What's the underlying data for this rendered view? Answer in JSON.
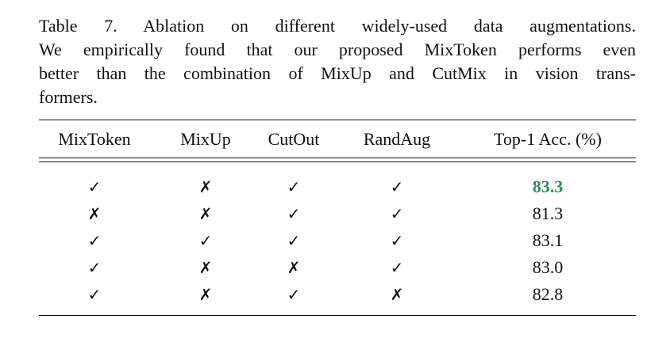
{
  "caption": {
    "lines": [
      "Table 7. Ablation on different widely-used data augmentations.",
      "We empirically found that our proposed MixToken performs even",
      "better than the combination of MixUp and CutMix in vision trans-",
      "formers."
    ]
  },
  "table": {
    "headers": [
      "MixToken",
      "MixUp",
      "CutOut",
      "RandAug",
      "Top-1 Acc. (%)"
    ],
    "rows": [
      {
        "cells": [
          "✓",
          "✗",
          "✓",
          "✓",
          "83.3"
        ],
        "highlight": true
      },
      {
        "cells": [
          "✗",
          "✗",
          "✓",
          "✓",
          "81.3"
        ],
        "highlight": false
      },
      {
        "cells": [
          "✓",
          "✓",
          "✓",
          "✓",
          "83.1"
        ],
        "highlight": false
      },
      {
        "cells": [
          "✓",
          "✗",
          "✗",
          "✓",
          "83.0"
        ],
        "highlight": false
      },
      {
        "cells": [
          "✓",
          "✗",
          "✓",
          "✗",
          "82.8"
        ],
        "highlight": false
      }
    ],
    "highlight_color": "#2e8b57"
  }
}
